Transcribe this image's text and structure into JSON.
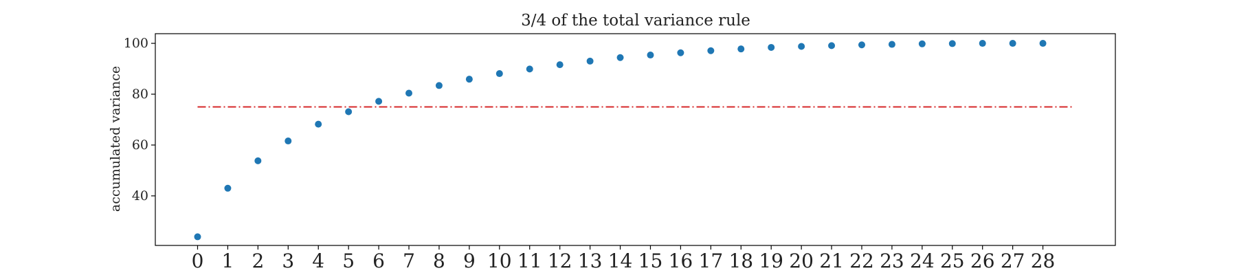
{
  "chart_data": {
    "type": "scatter",
    "title": "3/4 of the total variance rule",
    "xlabel": "",
    "ylabel": "accumulated variance",
    "x": [
      0,
      1,
      2,
      3,
      4,
      5,
      6,
      7,
      8,
      9,
      10,
      11,
      12,
      13,
      14,
      15,
      16,
      17,
      18,
      19,
      20,
      21,
      22,
      23,
      24,
      25,
      26,
      27,
      28
    ],
    "x_tick_labels": [
      "0",
      "1",
      "2",
      "3",
      "4",
      "5",
      "6",
      "7",
      "8",
      "9",
      "10",
      "11",
      "12",
      "13",
      "14",
      "15",
      "16",
      "17",
      "18",
      "19",
      "20",
      "21",
      "22",
      "23",
      "24",
      "25",
      "26",
      "27",
      "28"
    ],
    "y_ticks": [
      40,
      60,
      80,
      100
    ],
    "y_tick_labels": [
      "40",
      "60",
      "80",
      "100"
    ],
    "xlim": [
      -1.4,
      30.4
    ],
    "ylim": [
      20.5,
      103.8
    ],
    "grid": false,
    "series": [
      {
        "color": "#1f77b4",
        "values": [
          23.9,
          43.0,
          53.8,
          61.6,
          68.2,
          73.1,
          77.2,
          80.4,
          83.4,
          85.9,
          88.1,
          89.9,
          91.6,
          93.0,
          94.4,
          95.4,
          96.3,
          97.1,
          97.8,
          98.4,
          98.8,
          99.1,
          99.4,
          99.6,
          99.8,
          99.9,
          100.0,
          100.0,
          100.0
        ]
      }
    ],
    "reference_line": {
      "y": 75,
      "x_range": [
        0,
        29
      ],
      "color": "#d62728",
      "style": "dash-dot"
    }
  }
}
